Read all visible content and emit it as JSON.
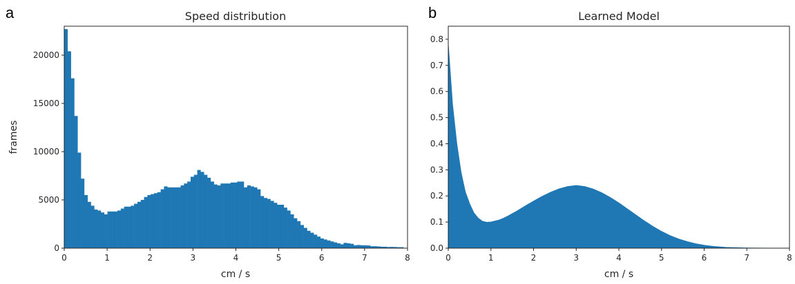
{
  "colors": {
    "bar": "#1f77b4",
    "axis": "#262626",
    "background": "#ffffff"
  },
  "chart_data": [
    {
      "panel_letter": "a",
      "type": "bar",
      "title": "Speed distribution",
      "xlabel": "cm / s",
      "ylabel": "frames",
      "xlim": [
        0,
        8
      ],
      "ylim": [
        0,
        23000
      ],
      "xticks": [
        0,
        1,
        2,
        3,
        4,
        5,
        6,
        7,
        8
      ],
      "yticks": [
        0,
        5000,
        10000,
        15000,
        20000
      ],
      "bin_width": 0.0775,
      "values": [
        22700,
        20400,
        17600,
        13700,
        9900,
        7200,
        5500,
        4800,
        4400,
        4000,
        3900,
        3700,
        3500,
        3800,
        3800,
        3800,
        3900,
        4100,
        4300,
        4300,
        4400,
        4600,
        4800,
        5000,
        5300,
        5500,
        5600,
        5700,
        5800,
        6100,
        6400,
        6300,
        6300,
        6300,
        6300,
        6500,
        6700,
        6900,
        7400,
        7600,
        8100,
        7900,
        7600,
        7300,
        6900,
        6600,
        6500,
        6700,
        6700,
        6700,
        6800,
        6800,
        6900,
        6900,
        6300,
        6500,
        6400,
        6300,
        6100,
        5400,
        5200,
        5100,
        4900,
        4700,
        4500,
        4500,
        4200,
        3900,
        3500,
        3100,
        2800,
        2400,
        2100,
        1800,
        1600,
        1400,
        1200,
        1000,
        900,
        800,
        700,
        600,
        500,
        400,
        550,
        500,
        450,
        300,
        330,
        300,
        300,
        280,
        200,
        200,
        180,
        150,
        150,
        120,
        130,
        120,
        100,
        100
      ]
    },
    {
      "panel_letter": "b",
      "type": "area",
      "title": "Learned Model",
      "xlabel": "cm / s",
      "ylabel": "",
      "xlim": [
        0,
        8
      ],
      "ylim": [
        0,
        0.85
      ],
      "xticks": [
        0,
        1,
        2,
        3,
        4,
        5,
        6,
        7,
        8
      ],
      "yticks": [
        0.0,
        0.1,
        0.2,
        0.3,
        0.4,
        0.5,
        0.6,
        0.7,
        0.8
      ],
      "x": [
        0,
        0.1,
        0.2,
        0.3,
        0.4,
        0.5,
        0.6,
        0.7,
        0.8,
        0.9,
        1.0,
        1.1,
        1.2,
        1.3,
        1.4,
        1.5,
        1.6,
        1.8,
        2.0,
        2.2,
        2.4,
        2.6,
        2.8,
        3.0,
        3.2,
        3.4,
        3.6,
        3.8,
        4.0,
        4.2,
        4.4,
        4.6,
        4.8,
        5.0,
        5.2,
        5.4,
        5.6,
        5.8,
        6.0,
        6.2,
        6.5,
        7.0,
        7.5,
        8.0
      ],
      "y": [
        0.78,
        0.55,
        0.4,
        0.29,
        0.215,
        0.17,
        0.135,
        0.115,
        0.103,
        0.099,
        0.1,
        0.104,
        0.108,
        0.115,
        0.123,
        0.132,
        0.141,
        0.161,
        0.18,
        0.198,
        0.214,
        0.227,
        0.236,
        0.24,
        0.236,
        0.226,
        0.212,
        0.194,
        0.173,
        0.15,
        0.127,
        0.104,
        0.083,
        0.064,
        0.048,
        0.035,
        0.025,
        0.017,
        0.011,
        0.007,
        0.003,
        0.0007,
        0.0001,
        0.0
      ]
    }
  ]
}
